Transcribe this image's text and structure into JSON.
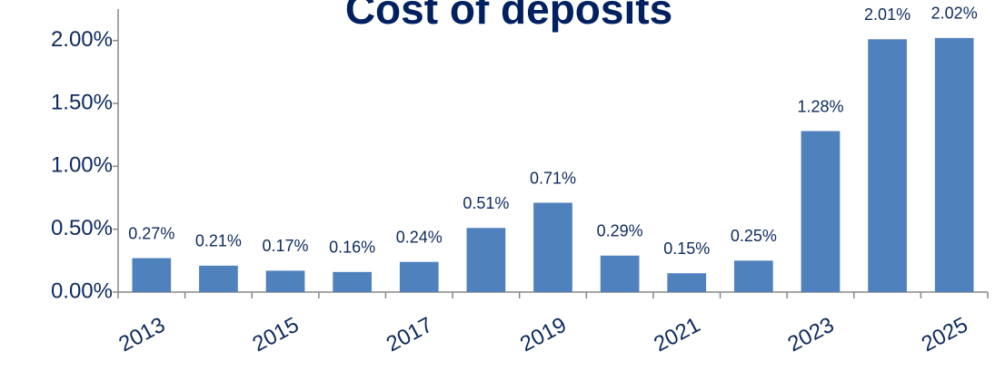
{
  "chart_data": {
    "type": "bar",
    "title": "Cost of deposits",
    "categories": [
      "2013",
      null,
      "2015",
      null,
      "2017",
      null,
      "2019",
      null,
      "2021",
      null,
      "2023",
      null,
      "2025"
    ],
    "values": [
      0.27,
      0.21,
      0.17,
      0.16,
      0.24,
      0.51,
      0.71,
      0.29,
      0.15,
      0.25,
      1.28,
      2.01,
      2.02
    ],
    "value_labels": [
      "0.27%",
      "0.21%",
      "0.17%",
      "0.16%",
      "0.24%",
      "0.51%",
      "0.71%",
      "0.29%",
      "0.15%",
      "0.25%",
      "1.28%",
      "2.01%",
      "2.02%"
    ],
    "color": "#4f81bd",
    "ylim": [
      0,
      2.25
    ],
    "yticks": [
      {
        "value": 0,
        "label": "0.00%"
      },
      {
        "value": 0.5,
        "label": "0.50%"
      },
      {
        "value": 1,
        "label": "1.00%"
      },
      {
        "value": 1.5,
        "label": "1.50%"
      },
      {
        "value": 2,
        "label": "2.00%"
      }
    ],
    "grid": false
  }
}
